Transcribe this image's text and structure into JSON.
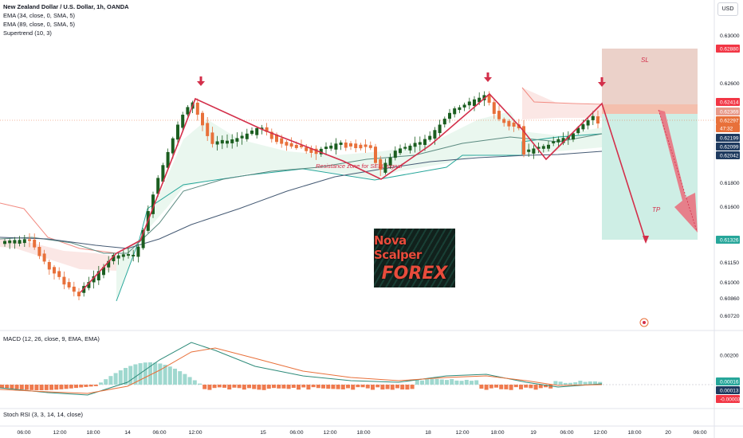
{
  "legend": {
    "title": "New Zealand Dollar / U.S. Dollar, 1h, OANDA",
    "ind1": "EMA (34, close, 0, SMA, 5)",
    "ind2": "EMA (89, close, 0, SMA, 5)",
    "ind3": "Supertrend (10, 3)"
  },
  "macd_label": "MACD (12, 26, close, 9, EMA, EMA)",
  "stoch_label": "Stoch RSI (3, 3, 14, 14, close)",
  "currency": "USD",
  "logo": {
    "line1": "Nova Scalper",
    "line2": "FOREX"
  },
  "annotations": {
    "sl": "SL",
    "tp": "TP",
    "resistance": "Resistance zone for SELL signal"
  },
  "colors": {
    "up": "#089981",
    "down": "#f23645",
    "candle_up": "#1b5e20",
    "candle_down": "#e8703a",
    "zigzag": "#d32f4a",
    "sl_zone": "#e8c9bf",
    "tp_zone": "#c5ebe0"
  },
  "chart_data": {
    "type": "line",
    "price_axis": {
      "min": 0.6072,
      "max": 0.63,
      "ticks": [
        "0.63000",
        "0.62600",
        "0.61800",
        "0.61600",
        "0.61150",
        "0.61000",
        "0.60860",
        "0.60720"
      ],
      "badges": [
        {
          "label": "0.62880",
          "color": "#f23645"
        },
        {
          "label": "0.62414",
          "color": "#f23645"
        },
        {
          "label": "0.62369",
          "color": "#e89a8a"
        },
        {
          "label": "0.62297",
          "color": "#e8703a"
        },
        {
          "label": "47:32",
          "color": "#e8703a"
        },
        {
          "label": "0.62199",
          "color": "#1e3a5f"
        },
        {
          "label": "0.62099",
          "color": "#1e3a5f"
        },
        {
          "label": "0.62042",
          "color": "#1e3a5f"
        },
        {
          "label": "0.61326",
          "color": "#26a69a"
        }
      ]
    },
    "time_axis": [
      "06:00",
      "12:00",
      "18:00",
      "14",
      "06:00",
      "12:00",
      "15",
      "06:00",
      "12:00",
      "18:00",
      "18",
      "12:00",
      "18:00",
      "19",
      "06:00",
      "12:00",
      "18:00",
      "20",
      "06:00"
    ],
    "macd_axis": [
      "0.00200",
      "0.00016",
      "0.00013",
      "-0.00003"
    ]
  }
}
